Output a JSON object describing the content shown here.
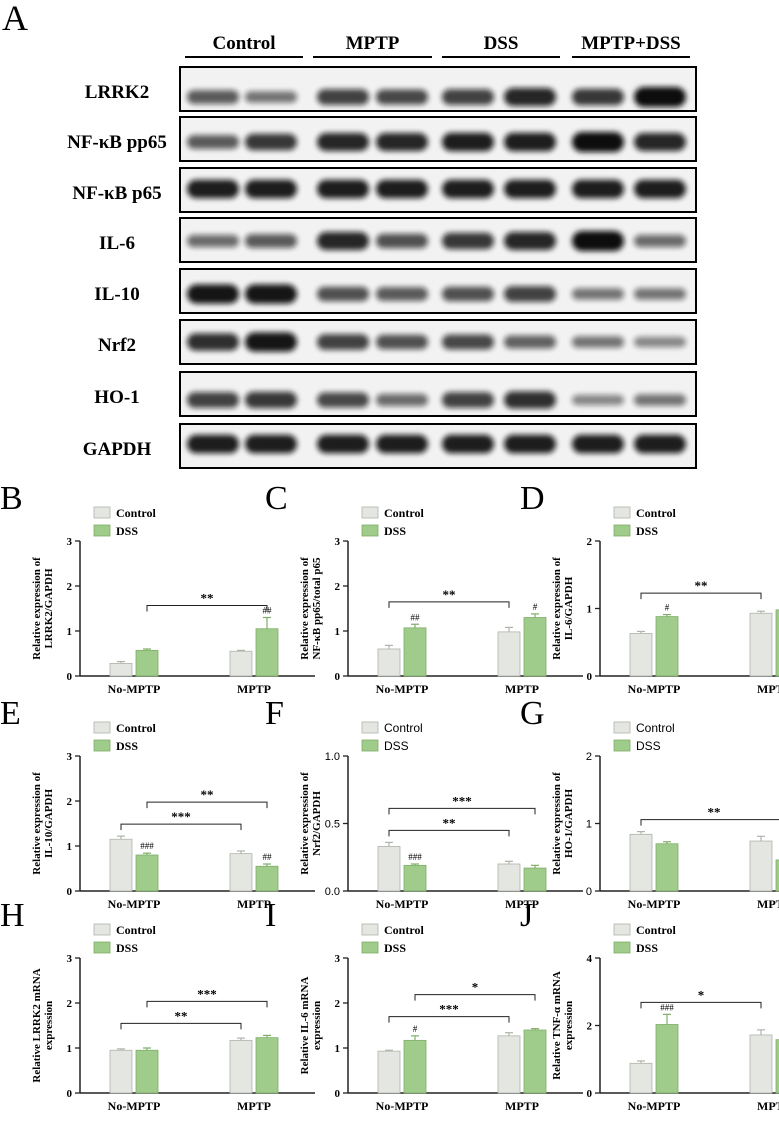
{
  "panel_a": {
    "label": "A",
    "groups": [
      "Control",
      "MPTP",
      "DSS",
      "MPTP+DSS"
    ],
    "rows": [
      {
        "name": "LRRK2",
        "lanes": [
          0.55,
          0.4,
          0.7,
          0.65,
          0.7,
          0.85,
          0.75,
          1.0
        ]
      },
      {
        "name": "NF-κB pp65",
        "lanes": [
          0.55,
          0.75,
          0.85,
          0.85,
          0.9,
          0.9,
          1.0,
          0.85
        ]
      },
      {
        "name": "NF-κB p65",
        "lanes": [
          0.9,
          0.9,
          0.9,
          0.9,
          0.9,
          0.9,
          0.9,
          0.9
        ]
      },
      {
        "name": "IL-6",
        "lanes": [
          0.45,
          0.55,
          0.85,
          0.6,
          0.75,
          0.85,
          1.0,
          0.45
        ]
      },
      {
        "name": "IL-10",
        "lanes": [
          0.95,
          0.95,
          0.6,
          0.55,
          0.6,
          0.7,
          0.4,
          0.4
        ]
      },
      {
        "name": "Nrf2",
        "lanes": [
          0.8,
          0.95,
          0.7,
          0.6,
          0.65,
          0.5,
          0.4,
          0.3
        ]
      },
      {
        "name": "HO-1",
        "lanes": [
          0.7,
          0.75,
          0.65,
          0.45,
          0.7,
          0.8,
          0.3,
          0.4
        ]
      },
      {
        "name": "GAPDH",
        "lanes": [
          0.9,
          0.9,
          0.9,
          0.9,
          0.9,
          0.9,
          0.9,
          0.9
        ]
      }
    ]
  },
  "chart_data": [
    {
      "type": "bar",
      "label": "B",
      "font": "serif",
      "categories": [
        "No-MPTP",
        "MPTP"
      ],
      "series": [
        {
          "name": "Control",
          "values": [
            0.28,
            0.55
          ],
          "err": [
            0.04,
            0.02
          ]
        },
        {
          "name": "DSS",
          "values": [
            0.57,
            1.05
          ],
          "err": [
            0.03,
            0.25
          ]
        }
      ],
      "ylabel": [
        "Relative expression of",
        "LRRK2/GAPDH"
      ],
      "ylim": [
        0,
        3
      ],
      "yticks": [
        "0",
        "1",
        "2",
        "3"
      ],
      "marks": [
        {
          "text": "##",
          "cat": 1,
          "s": 1
        }
      ],
      "brackets": [
        {
          "from": [
            0,
            1
          ],
          "to": [
            1,
            1
          ],
          "text": "**",
          "level": 1
        }
      ]
    },
    {
      "type": "bar",
      "label": "C",
      "font": "serif",
      "categories": [
        "No-MPTP",
        "MPTP"
      ],
      "series": [
        {
          "name": "Control",
          "values": [
            0.6,
            0.98
          ],
          "err": [
            0.08,
            0.1
          ]
        },
        {
          "name": "DSS",
          "values": [
            1.07,
            1.3
          ],
          "err": [
            0.08,
            0.08
          ]
        }
      ],
      "ylabel": [
        "Relative expression of",
        "NF-κB pp65/total p65"
      ],
      "ylim": [
        0,
        3
      ],
      "yticks": [
        "0",
        "1",
        "2",
        "3"
      ],
      "marks": [
        {
          "text": "##",
          "cat": 0,
          "s": 1
        },
        {
          "text": "#",
          "cat": 1,
          "s": 1
        }
      ],
      "brackets": [
        {
          "from": [
            0,
            0
          ],
          "to": [
            1,
            0
          ],
          "text": "**",
          "level": 1
        }
      ]
    },
    {
      "type": "bar",
      "label": "D",
      "font": "serif",
      "categories": [
        "No-MPTP",
        "MPTP"
      ],
      "series": [
        {
          "name": "Control",
          "values": [
            0.63,
            0.93
          ],
          "err": [
            0.03,
            0.03
          ]
        },
        {
          "name": "DSS",
          "values": [
            0.88,
            0.98
          ],
          "err": [
            0.03,
            0.07
          ]
        }
      ],
      "ylabel": [
        "Relative expression of",
        "IL-6/GAPDH"
      ],
      "ylim": [
        0,
        2
      ],
      "yticks": [
        "0",
        "1",
        "2"
      ],
      "marks": [
        {
          "text": "#",
          "cat": 0,
          "s": 1
        }
      ],
      "brackets": [
        {
          "from": [
            0,
            0
          ],
          "to": [
            1,
            0
          ],
          "text": "**",
          "level": 1
        }
      ]
    },
    {
      "type": "bar",
      "label": "E",
      "font": "serif",
      "categories": [
        "No-MPTP",
        "MPTP"
      ],
      "series": [
        {
          "name": "Control",
          "values": [
            1.15,
            0.83
          ],
          "err": [
            0.07,
            0.06
          ]
        },
        {
          "name": "DSS",
          "values": [
            0.8,
            0.55
          ],
          "err": [
            0.04,
            0.05
          ]
        }
      ],
      "ylabel": [
        "Relative expression of",
        "IL-10/GAPDH"
      ],
      "ylim": [
        0,
        3
      ],
      "yticks": [
        "0",
        "1",
        "2",
        "3"
      ],
      "marks": [
        {
          "text": "###",
          "cat": 0,
          "s": 1
        },
        {
          "text": "##",
          "cat": 1,
          "s": 1
        }
      ],
      "brackets": [
        {
          "from": [
            0,
            0
          ],
          "to": [
            1,
            0
          ],
          "text": "***",
          "level": 1
        },
        {
          "from": [
            0,
            1
          ],
          "to": [
            1,
            1
          ],
          "text": "**",
          "level": 2
        }
      ]
    },
    {
      "type": "bar",
      "label": "F",
      "font": "sans",
      "categories": [
        "No-MPTP",
        "MPTP"
      ],
      "series": [
        {
          "name": "Control",
          "values": [
            0.33,
            0.2
          ],
          "err": [
            0.03,
            0.02
          ]
        },
        {
          "name": "DSS",
          "values": [
            0.19,
            0.17
          ],
          "err": [
            0.01,
            0.02
          ]
        }
      ],
      "ylabel": [
        "Relative expression of",
        "Nrf2/GAPDH"
      ],
      "ylim": [
        0,
        1.0
      ],
      "yticks": [
        "0.0",
        "0.5",
        "1.0"
      ],
      "marks": [
        {
          "text": "###",
          "cat": 0,
          "s": 1
        }
      ],
      "brackets": [
        {
          "from": [
            0,
            0
          ],
          "to": [
            1,
            0
          ],
          "text": "**",
          "level": 1
        },
        {
          "from": [
            0,
            0
          ],
          "to": [
            1,
            1
          ],
          "text": "***",
          "level": 2
        }
      ]
    },
    {
      "type": "bar",
      "label": "G",
      "font": "sans",
      "categories": [
        "No-MPTP",
        "MPTP"
      ],
      "series": [
        {
          "name": "Control",
          "values": [
            0.84,
            0.74
          ],
          "err": [
            0.04,
            0.07
          ]
        },
        {
          "name": "DSS",
          "values": [
            0.7,
            0.46
          ],
          "err": [
            0.03,
            0.08
          ]
        }
      ],
      "ylabel": [
        "Relative expression of",
        "HO-1/GAPDH"
      ],
      "ylim": [
        0,
        2
      ],
      "yticks": [
        "0",
        "1",
        "2"
      ],
      "marks": [
        {
          "text": "#",
          "cat": 1,
          "s": 1
        }
      ],
      "brackets": [
        {
          "from": [
            0,
            0
          ],
          "to": [
            1,
            1
          ],
          "text": "**",
          "level": 1
        }
      ]
    },
    {
      "type": "bar",
      "label": "H",
      "font": "serif",
      "categories": [
        "No-MPTP",
        "MPTP"
      ],
      "series": [
        {
          "name": "Control",
          "values": [
            0.95,
            1.17
          ],
          "err": [
            0.03,
            0.05
          ]
        },
        {
          "name": "DSS",
          "values": [
            0.95,
            1.23
          ],
          "err": [
            0.05,
            0.05
          ]
        }
      ],
      "ylabel": [
        "Relative LRRK2 mRNA",
        "expression"
      ],
      "ylim": [
        0,
        3
      ],
      "yticks": [
        "0",
        "1",
        "2",
        "3"
      ],
      "marks": [],
      "brackets": [
        {
          "from": [
            0,
            0
          ],
          "to": [
            1,
            0
          ],
          "text": "**",
          "level": 1
        },
        {
          "from": [
            0,
            1
          ],
          "to": [
            1,
            1
          ],
          "text": "***",
          "level": 2
        }
      ]
    },
    {
      "type": "bar",
      "label": "I",
      "font": "serif",
      "categories": [
        "No-MPTP",
        "MPTP"
      ],
      "series": [
        {
          "name": "Control",
          "values": [
            0.93,
            1.27
          ],
          "err": [
            0.02,
            0.07
          ]
        },
        {
          "name": "DSS",
          "values": [
            1.17,
            1.4
          ],
          "err": [
            0.1,
            0.03
          ]
        }
      ],
      "ylabel": [
        "Relative IL-6 mRNA",
        "expression"
      ],
      "ylim": [
        0,
        3
      ],
      "yticks": [
        "0",
        "1",
        "2",
        "3"
      ],
      "marks": [
        {
          "text": "#",
          "cat": 0,
          "s": 1
        }
      ],
      "brackets": [
        {
          "from": [
            0,
            0
          ],
          "to": [
            1,
            0
          ],
          "text": "***",
          "level": 1
        },
        {
          "from": [
            0,
            1
          ],
          "to": [
            1,
            1
          ],
          "text": "*",
          "level": 2
        }
      ]
    },
    {
      "type": "bar",
      "label": "J",
      "font": "serif",
      "categories": [
        "No-MPTP",
        "MPTP"
      ],
      "series": [
        {
          "name": "Control",
          "values": [
            0.88,
            1.72
          ],
          "err": [
            0.07,
            0.15
          ]
        },
        {
          "name": "DSS",
          "values": [
            2.03,
            1.58
          ],
          "err": [
            0.3,
            0.15
          ]
        }
      ],
      "ylabel": [
        "Relative TNF-α mRNA",
        "expression"
      ],
      "ylim": [
        0,
        4
      ],
      "yticks": [
        "0",
        "2",
        "4"
      ],
      "marks": [
        {
          "text": "###",
          "cat": 0,
          "s": 1
        }
      ],
      "brackets": [
        {
          "from": [
            0,
            0
          ],
          "to": [
            1,
            0
          ],
          "text": "*",
          "level": 1
        }
      ]
    }
  ],
  "colors": {
    "control": "#e4e7e1",
    "control_edge": "#aeb4aa",
    "dss": "#9fcc8a",
    "dss_edge": "#7fae68",
    "axis": "#222222"
  }
}
